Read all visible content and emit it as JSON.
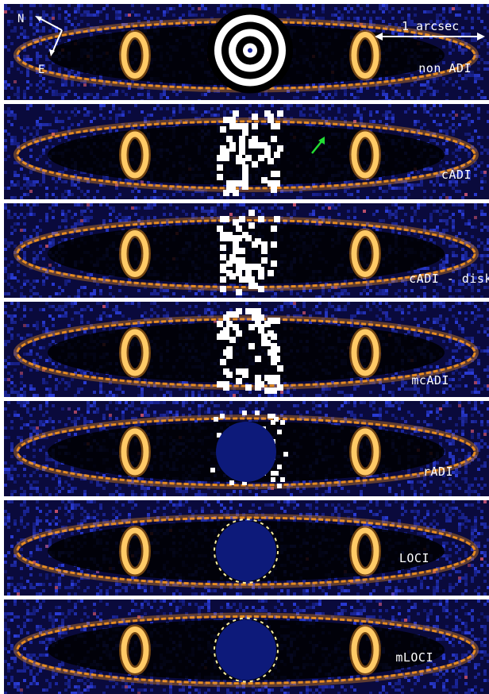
{
  "scale_bar": {
    "label": "1 arcsec"
  },
  "compass": {
    "north": "N",
    "east": "E"
  },
  "panels": [
    {
      "label": "non ADI",
      "center": "rings"
    },
    {
      "label": "cADI",
      "center": "blob"
    },
    {
      "label": "cADI - disk",
      "center": "blob"
    },
    {
      "label": "mcADI",
      "center": "blob"
    },
    {
      "label": "rADI",
      "center": "mask_partial"
    },
    {
      "label": "LOCI",
      "center": "mask"
    },
    {
      "label": "mLOCI",
      "center": "mask"
    }
  ],
  "colors": {
    "background": "#0a0a3c",
    "noise": "#2a3cd6",
    "ring": "#ff9a1e",
    "ring_hot": "#fff2a0",
    "mask": "#0d1a7a",
    "separator": "#ffffff",
    "arrow": "#22dd33"
  }
}
